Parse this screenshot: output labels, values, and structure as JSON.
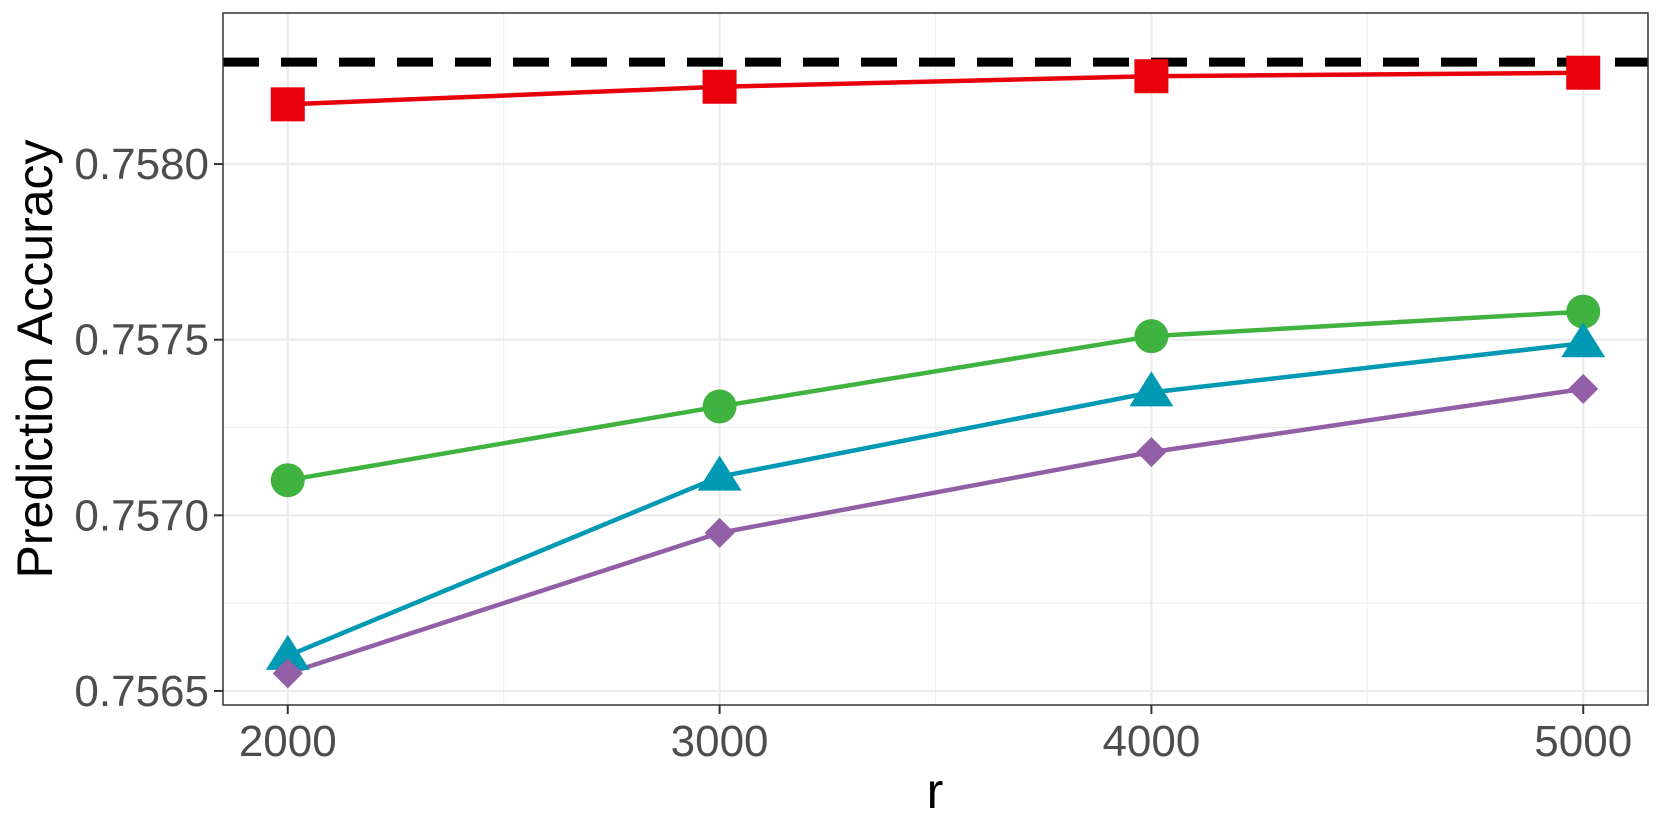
{
  "chart_data": {
    "type": "line",
    "title": "",
    "xlabel": "r",
    "ylabel": "Prediction Accuracy",
    "x": [
      2000,
      3000,
      4000,
      5000
    ],
    "xticks": [
      2000,
      3000,
      4000,
      5000
    ],
    "xtick_labels": [
      "2000",
      "3000",
      "4000",
      "5000"
    ],
    "yticks": [
      0.7565,
      0.757,
      0.7575,
      0.758
    ],
    "ytick_labels": [
      "0.7565",
      "0.7570",
      "0.7575",
      "0.7580"
    ],
    "xlim": [
      1850,
      5150
    ],
    "ylim": [
      0.75646,
      0.75843
    ],
    "grid": true,
    "legend": "none",
    "reference_line": {
      "y": 0.75829,
      "color": "#000000",
      "style": "dashed"
    },
    "series": [
      {
        "values": [
          0.75817,
          0.75822,
          0.75825,
          0.75826
        ],
        "color": "#e8000b",
        "marker": "square"
      },
      {
        "values": [
          0.7571,
          0.75731,
          0.75751,
          0.75758
        ],
        "color": "#3fb23f",
        "marker": "circle"
      },
      {
        "values": [
          0.7566,
          0.75711,
          0.75735,
          0.75749
        ],
        "color": "#0099b4",
        "marker": "triangle"
      },
      {
        "values": [
          0.75655,
          0.75695,
          0.75718,
          0.75736
        ],
        "color": "#925ea5",
        "marker": "diamond"
      }
    ]
  }
}
